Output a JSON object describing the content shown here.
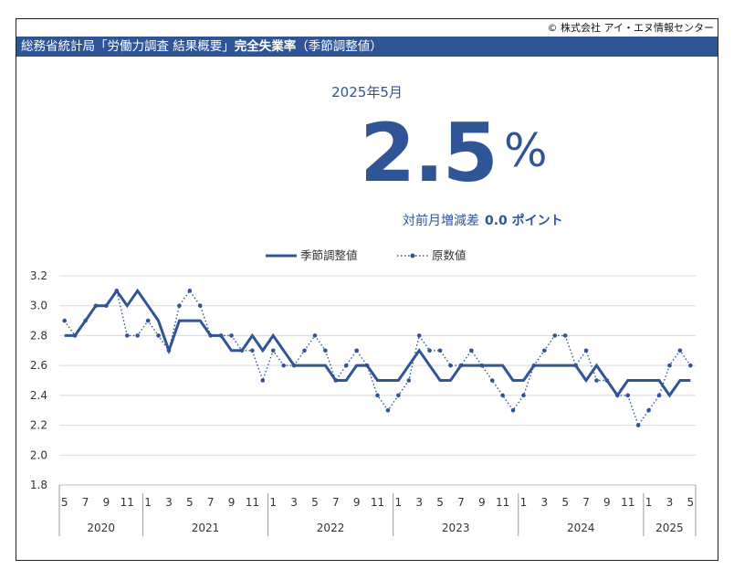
{
  "header": {
    "copyright": "© 株式会社 アイ・エヌ情報センター",
    "title_prefix": "総務省統計局「労働力調査 結果概要」",
    "title_bold": "完全失業率",
    "title_suffix": "（季節調整値）"
  },
  "summary": {
    "period": "2025年5月",
    "value": "2.5",
    "unit": "%",
    "change_label": "対前月増減差",
    "change_value": "0.0 ポイント"
  },
  "colors": {
    "accent": "#2f5597",
    "grid": "#d9d9d9"
  },
  "chart_data": {
    "type": "line",
    "ylim": [
      1.8,
      3.2
    ],
    "yticks": [
      "1.8",
      "2.0",
      "2.2",
      "2.4",
      "2.6",
      "2.8",
      "3.0",
      "3.2"
    ],
    "month_tick_labels": [
      "5",
      "7",
      "9",
      "11",
      "1",
      "3",
      "5",
      "7",
      "9",
      "11",
      "1",
      "3",
      "5",
      "7",
      "9",
      "11",
      "1",
      "3",
      "5",
      "7",
      "9",
      "11",
      "1",
      "3",
      "5",
      "7",
      "9",
      "11",
      "1",
      "3",
      "5"
    ],
    "year_labels": [
      "2020",
      "2021",
      "2022",
      "2023",
      "2024",
      "2025"
    ],
    "legend": {
      "position": "top-center"
    },
    "x": [
      "2020-05",
      "2020-06",
      "2020-07",
      "2020-08",
      "2020-09",
      "2020-10",
      "2020-11",
      "2020-12",
      "2021-01",
      "2021-02",
      "2021-03",
      "2021-04",
      "2021-05",
      "2021-06",
      "2021-07",
      "2021-08",
      "2021-09",
      "2021-10",
      "2021-11",
      "2021-12",
      "2022-01",
      "2022-02",
      "2022-03",
      "2022-04",
      "2022-05",
      "2022-06",
      "2022-07",
      "2022-08",
      "2022-09",
      "2022-10",
      "2022-11",
      "2022-12",
      "2023-01",
      "2023-02",
      "2023-03",
      "2023-04",
      "2023-05",
      "2023-06",
      "2023-07",
      "2023-08",
      "2023-09",
      "2023-10",
      "2023-11",
      "2023-12",
      "2024-01",
      "2024-02",
      "2024-03",
      "2024-04",
      "2024-05",
      "2024-06",
      "2024-07",
      "2024-08",
      "2024-09",
      "2024-10",
      "2024-11",
      "2024-12",
      "2025-01",
      "2025-02",
      "2025-03",
      "2025-04",
      "2025-05"
    ],
    "series": [
      {
        "name": "季節調整値",
        "style": "solid",
        "values": [
          2.8,
          2.8,
          2.9,
          3.0,
          3.0,
          3.1,
          3.0,
          3.1,
          3.0,
          2.9,
          2.7,
          2.9,
          2.9,
          2.9,
          2.8,
          2.8,
          2.7,
          2.7,
          2.8,
          2.7,
          2.8,
          2.7,
          2.6,
          2.6,
          2.6,
          2.6,
          2.5,
          2.5,
          2.6,
          2.6,
          2.5,
          2.5,
          2.5,
          2.6,
          2.7,
          2.6,
          2.5,
          2.5,
          2.6,
          2.6,
          2.6,
          2.6,
          2.6,
          2.5,
          2.5,
          2.6,
          2.6,
          2.6,
          2.6,
          2.6,
          2.5,
          2.6,
          2.5,
          2.4,
          2.5,
          2.5,
          2.5,
          2.5,
          2.4,
          2.5,
          2.5
        ]
      },
      {
        "name": "原数値",
        "style": "dotted",
        "values": [
          2.9,
          2.8,
          2.9,
          3.0,
          3.0,
          3.1,
          2.8,
          2.8,
          2.9,
          2.8,
          2.7,
          3.0,
          3.1,
          3.0,
          2.8,
          2.8,
          2.8,
          2.7,
          2.7,
          2.5,
          2.7,
          2.6,
          2.6,
          2.7,
          2.8,
          2.7,
          2.5,
          2.6,
          2.7,
          2.6,
          2.4,
          2.3,
          2.4,
          2.5,
          2.8,
          2.7,
          2.7,
          2.6,
          2.6,
          2.7,
          2.6,
          2.5,
          2.4,
          2.3,
          2.4,
          2.6,
          2.7,
          2.8,
          2.8,
          2.6,
          2.7,
          2.5,
          2.5,
          2.4,
          2.4,
          2.2,
          2.3,
          2.4,
          2.6,
          2.7,
          2.6
        ]
      }
    ]
  }
}
